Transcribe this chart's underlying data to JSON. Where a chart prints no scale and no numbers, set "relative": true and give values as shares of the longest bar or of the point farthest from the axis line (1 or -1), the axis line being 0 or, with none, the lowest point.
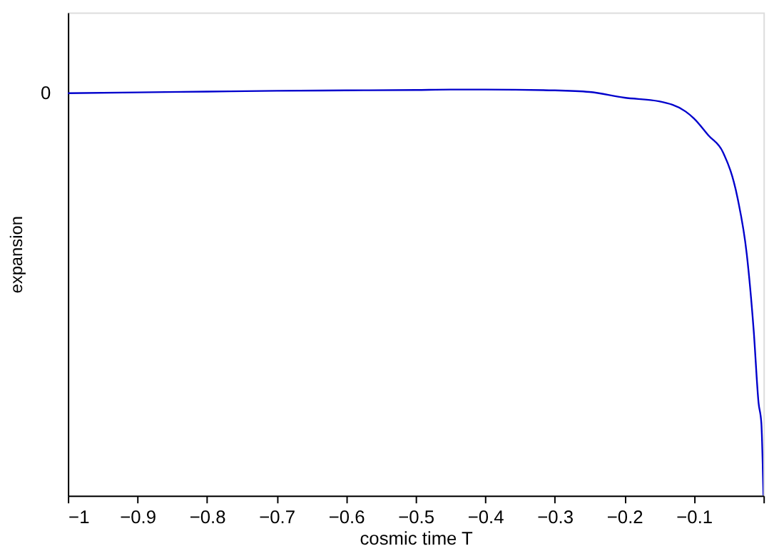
{
  "chart_data": {
    "type": "line",
    "xlabel": "cosmic time T",
    "ylabel": "expansion",
    "relative": true,
    "x": [
      -1,
      -0.9,
      -0.8,
      -0.7,
      -0.6,
      -0.5,
      -0.45,
      -0.4,
      -0.3,
      -0.25,
      -0.2,
      -0.15,
      -0.112,
      -0.1,
      -0.079,
      -0.058,
      -0.037,
      -0.024,
      -0.014,
      -0.007,
      -0.003,
      0
    ],
    "series": [
      {
        "color": "#0000cc",
        "values": [
          0.991,
          0.993,
          0.995,
          0.997,
          0.998,
          0.999,
          1,
          1,
          0.998,
          0.994,
          0.98,
          0.971,
          0.946,
          0.929,
          0.887,
          0.845,
          0.731,
          0.595,
          0.406,
          0.228,
          0.178,
          0
        ]
      }
    ],
    "xlim": [
      -1,
      0
    ],
    "xticks": [
      {
        "value": -1,
        "label": "−1"
      },
      {
        "value": -0.9,
        "label": "−0.9"
      },
      {
        "value": -0.8,
        "label": "−0.8"
      },
      {
        "value": -0.7,
        "label": "−0.7"
      },
      {
        "value": -0.6,
        "label": "−0.6"
      },
      {
        "value": -0.5,
        "label": "−0.5"
      },
      {
        "value": -0.4,
        "label": "−0.4"
      },
      {
        "value": -0.3,
        "label": "−0.3"
      },
      {
        "value": -0.2,
        "label": "−0.2"
      },
      {
        "value": -0.1,
        "label": "−0.1"
      },
      {
        "value": 0,
        "label": null
      }
    ],
    "annotations": [
      {
        "text": "0",
        "x": -1,
        "y": 0.991
      }
    ],
    "grid": false,
    "marker": "none",
    "line_style": "solid"
  }
}
